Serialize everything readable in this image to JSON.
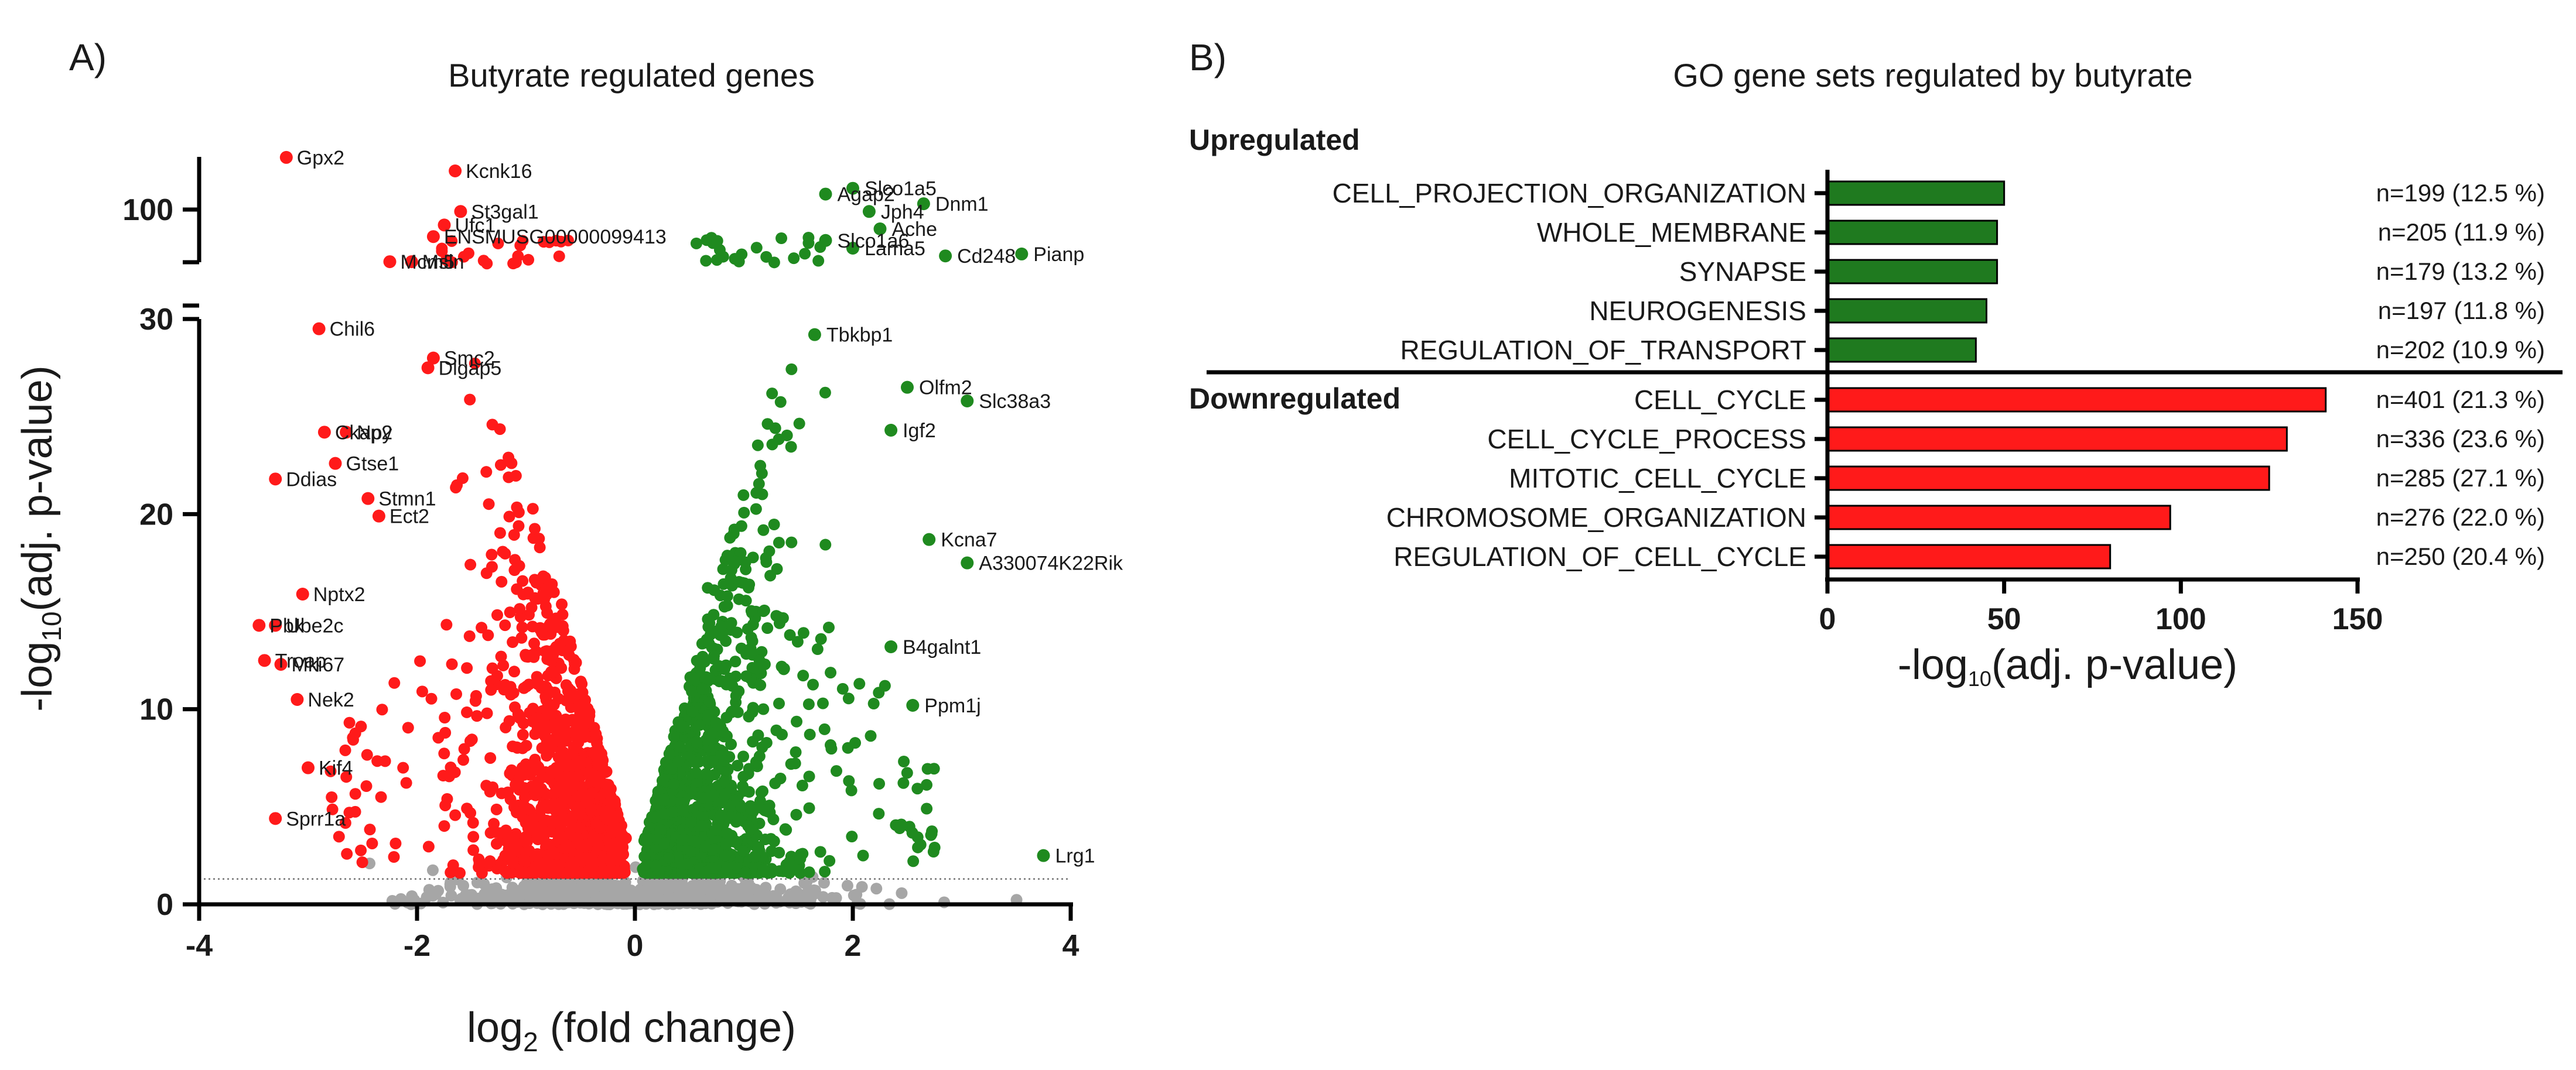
{
  "panels": {
    "a": "A)",
    "b": "B)"
  },
  "chart_data": [
    {
      "type": "scatter",
      "title": "Butyrate regulated genes",
      "xlabel": "log2 (fold change)",
      "xlabel_main": "log",
      "xlabel_sub": "2",
      "xlabel_rest": " (fold change)",
      "ylabel": "-log10(adj. p-value)",
      "ylabel_main": "-log",
      "ylabel_sub": "10",
      "ylabel_rest": "(adj. p-value)",
      "xlim": [
        -4,
        4
      ],
      "ylim_lower": [
        0,
        30
      ],
      "ylim_upper_tick": 100,
      "y_axis_break": true,
      "threshold_y": 1.3,
      "x_ticks": [
        "-4",
        "-2",
        "0",
        "2",
        "4"
      ],
      "y_ticks": [
        "0",
        "10",
        "20",
        "30",
        "100"
      ],
      "colors": {
        "down": "#ff1a1a",
        "up": "#1f8a1f",
        "ns": "#a6a6a6"
      },
      "labeled_genes": [
        {
          "gene": "Gpx2",
          "x": -3.2,
          "y": 127,
          "dir": "down"
        },
        {
          "gene": "Kcnk16",
          "x": -1.65,
          "y": 120,
          "dir": "down"
        },
        {
          "gene": "St3gal1",
          "x": -1.6,
          "y": 99,
          "dir": "down"
        },
        {
          "gene": "Ufc1",
          "x": -1.75,
          "y": 92,
          "dir": "down"
        },
        {
          "gene": "ENSMUSG00000099413",
          "x": -1.85,
          "y": 86,
          "dir": "down"
        },
        {
          "gene": "Mcm5",
          "x": -2.25,
          "y": 73,
          "dir": "down"
        },
        {
          "gene": "Msln",
          "x": -2.05,
          "y": 73,
          "dir": "down"
        },
        {
          "gene": "Chil6",
          "x": -2.9,
          "y": 29.5,
          "dir": "down"
        },
        {
          "gene": "Smc2",
          "x": -1.85,
          "y": 28.0,
          "dir": "down"
        },
        {
          "gene": "Dlgap5",
          "x": -1.9,
          "y": 27.5,
          "dir": "down"
        },
        {
          "gene": "Ckap2",
          "x": -2.85,
          "y": 24.2,
          "dir": "down"
        },
        {
          "gene": "Npy",
          "x": -2.65,
          "y": 24.2,
          "dir": "down"
        },
        {
          "gene": "Gtse1",
          "x": -2.75,
          "y": 22.6,
          "dir": "down"
        },
        {
          "gene": "Ddias",
          "x": -3.3,
          "y": 21.8,
          "dir": "down"
        },
        {
          "gene": "Stmn1",
          "x": -2.45,
          "y": 20.8,
          "dir": "down"
        },
        {
          "gene": "Ect2",
          "x": -2.35,
          "y": 19.9,
          "dir": "down"
        },
        {
          "gene": "Nptx2",
          "x": -3.05,
          "y": 15.9,
          "dir": "down"
        },
        {
          "gene": "Pbk",
          "x": -3.45,
          "y": 14.3,
          "dir": "down"
        },
        {
          "gene": "Ube2c",
          "x": -3.3,
          "y": 14.3,
          "dir": "down"
        },
        {
          "gene": "Troap",
          "x": -3.4,
          "y": 12.5,
          "dir": "down"
        },
        {
          "gene": "Mki67",
          "x": -3.25,
          "y": 12.3,
          "dir": "down"
        },
        {
          "gene": "Nek2",
          "x": -3.1,
          "y": 10.5,
          "dir": "down"
        },
        {
          "gene": "Kif4",
          "x": -3.0,
          "y": 7.0,
          "dir": "down"
        },
        {
          "gene": "Sprr1a",
          "x": -3.3,
          "y": 4.4,
          "dir": "down"
        },
        {
          "gene": "Agap2",
          "x": 1.75,
          "y": 108,
          "dir": "up"
        },
        {
          "gene": "Slco1a5",
          "x": 2.0,
          "y": 111,
          "dir": "up"
        },
        {
          "gene": "Jph4",
          "x": 2.15,
          "y": 99,
          "dir": "up"
        },
        {
          "gene": "Dnm1",
          "x": 2.65,
          "y": 103,
          "dir": "up"
        },
        {
          "gene": "Ache",
          "x": 2.25,
          "y": 90,
          "dir": "up"
        },
        {
          "gene": "Slco1a6",
          "x": 1.75,
          "y": 84,
          "dir": "up"
        },
        {
          "gene": "Lama5",
          "x": 2.0,
          "y": 80,
          "dir": "up"
        },
        {
          "gene": "Cd248",
          "x": 2.85,
          "y": 76,
          "dir": "up"
        },
        {
          "gene": "Pianp",
          "x": 3.55,
          "y": 77,
          "dir": "up"
        },
        {
          "gene": "Tbkbp1",
          "x": 1.65,
          "y": 29.2,
          "dir": "up"
        },
        {
          "gene": "Olfm2",
          "x": 2.5,
          "y": 26.5,
          "dir": "up"
        },
        {
          "gene": "Slc38a3",
          "x": 3.05,
          "y": 25.8,
          "dir": "up"
        },
        {
          "gene": "Igf2",
          "x": 2.35,
          "y": 24.3,
          "dir": "up"
        },
        {
          "gene": "Kcna7",
          "x": 2.7,
          "y": 18.7,
          "dir": "up"
        },
        {
          "gene": "A330074K22Rik",
          "x": 3.05,
          "y": 17.5,
          "dir": "up"
        },
        {
          "gene": "B4galnt1",
          "x": 2.35,
          "y": 13.2,
          "dir": "up"
        },
        {
          "gene": "Ppm1j",
          "x": 2.55,
          "y": 10.2,
          "dir": "up"
        },
        {
          "gene": "Lrg1",
          "x": 3.75,
          "y": 2.5,
          "dir": "up"
        }
      ]
    },
    {
      "type": "bar",
      "orientation": "horizontal",
      "title": "GO gene sets regulated by butyrate",
      "xlabel": "-log10(adj. p-value)",
      "xlabel_main": "-log",
      "xlabel_sub": "10",
      "xlabel_rest": "(adj. p-value)",
      "xlim": [
        0,
        150
      ],
      "x_ticks": [
        "0",
        "50",
        "100",
        "150"
      ],
      "groups": [
        {
          "name": "Upregulated",
          "color": "#1f7a1f",
          "categories": [
            "CELL_PROJECTION_ORGANIZATION",
            "WHOLE_MEMBRANE",
            "SYNAPSE",
            "NEUROGENESIS",
            "REGULATION_OF_TRANSPORT"
          ],
          "values": [
            50,
            48,
            48,
            45,
            42
          ],
          "annotations": [
            "n=199 (12.5 %)",
            "n=205 (11.9 %)",
            "n=179 (13.2 %)",
            "n=197 (11.8 %)",
            "n=202 (10.9 %)"
          ]
        },
        {
          "name": "Downregulated",
          "color": "#ff1a1a",
          "categories": [
            "CELL_CYCLE",
            "CELL_CYCLE_PROCESS",
            "MITOTIC_CELL_CYCLE",
            "CHROMOSOME_ORGANIZATION",
            "REGULATION_OF_CELL_CYCLE"
          ],
          "values": [
            141,
            130,
            125,
            97,
            80
          ],
          "annotations": [
            "n=401 (21.3 %)",
            "n=336 (23.6 %)",
            "n=285 (27.1 %)",
            "n=276 (22.0 %)",
            "n=250 (20.4 %)"
          ]
        }
      ]
    }
  ]
}
